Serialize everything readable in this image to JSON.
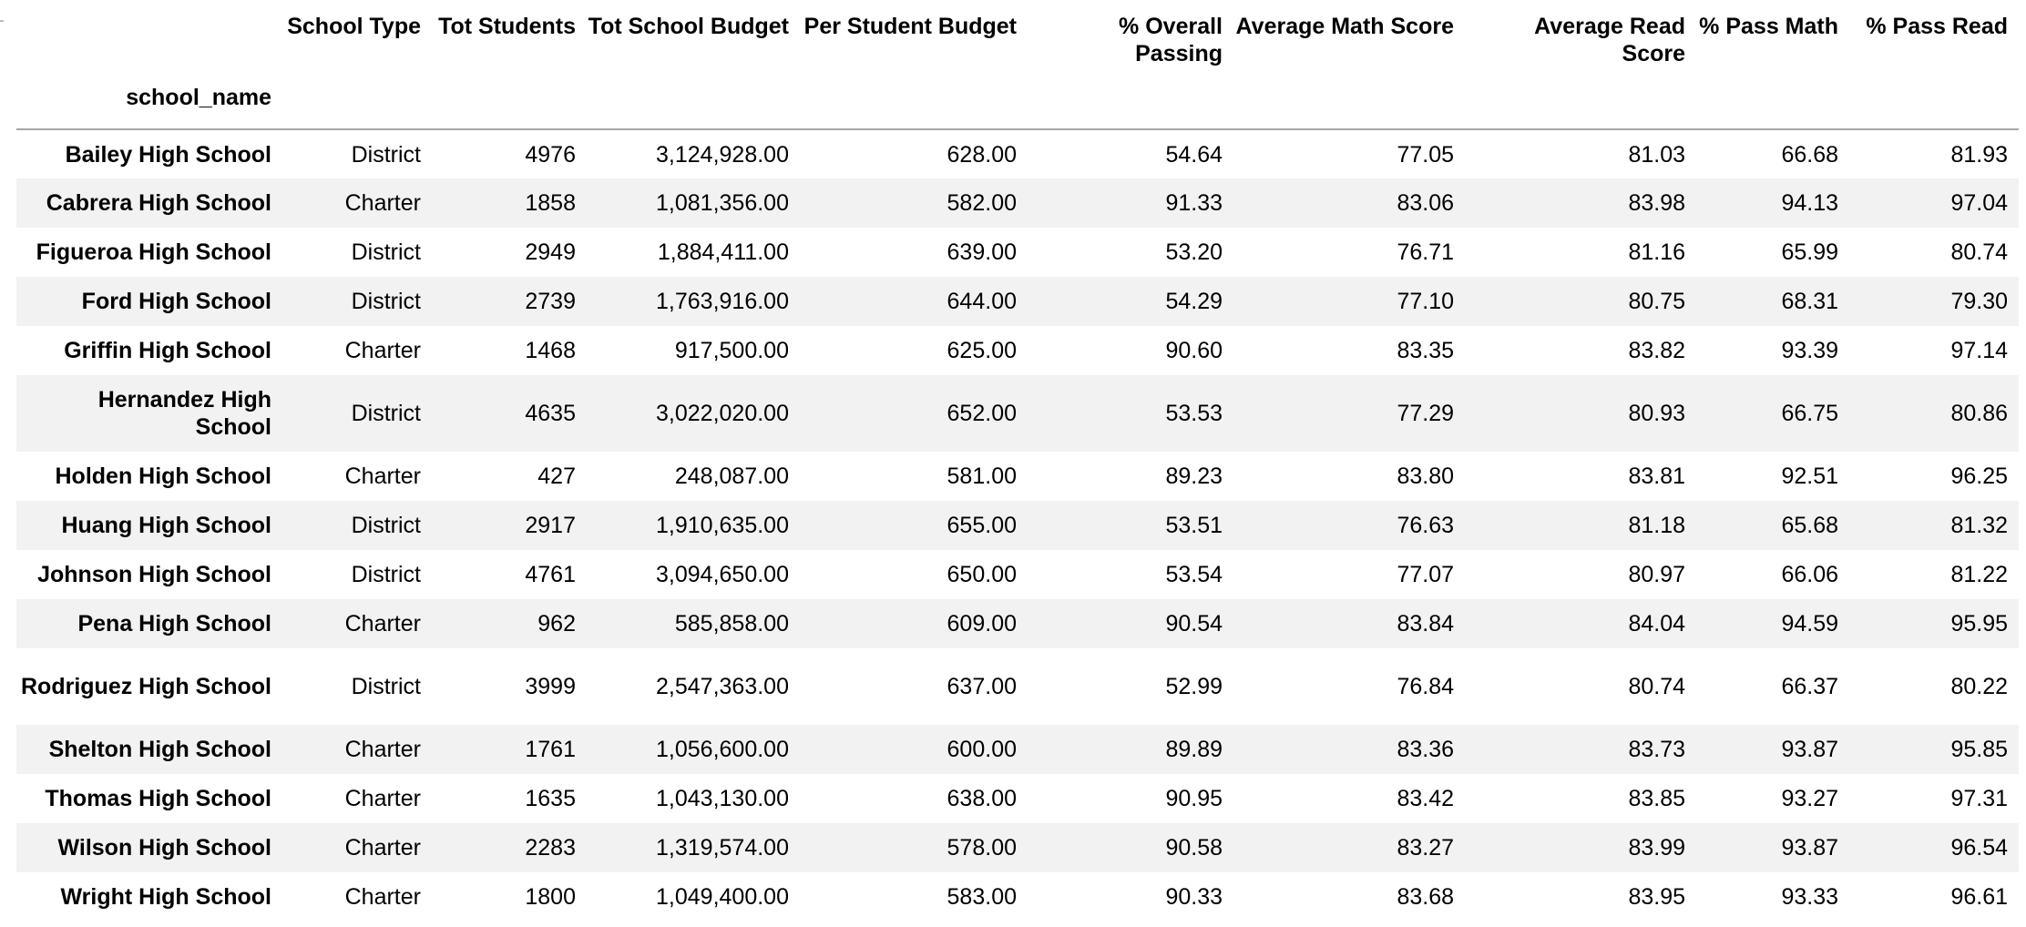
{
  "table": {
    "columns": [
      "School Type",
      "Tot Students",
      "Tot School Budget",
      "Per Student Budget",
      "% Overall Passing",
      "Average Math Score",
      "Average Read Score",
      "% Pass Math",
      "% Pass Read"
    ],
    "index_name": "school_name",
    "rows": [
      {
        "name": "Bailey High School",
        "type": "District",
        "students": "4976",
        "budget": "3,124,928.00",
        "per_student": "628.00",
        "overall_passing": "54.64",
        "avg_math": "77.05",
        "avg_read": "81.03",
        "pass_math": "66.68",
        "pass_read": "81.93"
      },
      {
        "name": "Cabrera High School",
        "type": "Charter",
        "students": "1858",
        "budget": "1,081,356.00",
        "per_student": "582.00",
        "overall_passing": "91.33",
        "avg_math": "83.06",
        "avg_read": "83.98",
        "pass_math": "94.13",
        "pass_read": "97.04"
      },
      {
        "name": "Figueroa High School",
        "type": "District",
        "students": "2949",
        "budget": "1,884,411.00",
        "per_student": "639.00",
        "overall_passing": "53.20",
        "avg_math": "76.71",
        "avg_read": "81.16",
        "pass_math": "65.99",
        "pass_read": "80.74"
      },
      {
        "name": "Ford High School",
        "type": "District",
        "students": "2739",
        "budget": "1,763,916.00",
        "per_student": "644.00",
        "overall_passing": "54.29",
        "avg_math": "77.10",
        "avg_read": "80.75",
        "pass_math": "68.31",
        "pass_read": "79.30"
      },
      {
        "name": "Griffin High School",
        "type": "Charter",
        "students": "1468",
        "budget": "917,500.00",
        "per_student": "625.00",
        "overall_passing": "90.60",
        "avg_math": "83.35",
        "avg_read": "83.82",
        "pass_math": "93.39",
        "pass_read": "97.14"
      },
      {
        "name": "Hernandez High School",
        "type": "District",
        "students": "4635",
        "budget": "3,022,020.00",
        "per_student": "652.00",
        "overall_passing": "53.53",
        "avg_math": "77.29",
        "avg_read": "80.93",
        "pass_math": "66.75",
        "pass_read": "80.86"
      },
      {
        "name": "Holden High School",
        "type": "Charter",
        "students": "427",
        "budget": "248,087.00",
        "per_student": "581.00",
        "overall_passing": "89.23",
        "avg_math": "83.80",
        "avg_read": "83.81",
        "pass_math": "92.51",
        "pass_read": "96.25"
      },
      {
        "name": "Huang High School",
        "type": "District",
        "students": "2917",
        "budget": "1,910,635.00",
        "per_student": "655.00",
        "overall_passing": "53.51",
        "avg_math": "76.63",
        "avg_read": "81.18",
        "pass_math": "65.68",
        "pass_read": "81.32"
      },
      {
        "name": "Johnson High School",
        "type": "District",
        "students": "4761",
        "budget": "3,094,650.00",
        "per_student": "650.00",
        "overall_passing": "53.54",
        "avg_math": "77.07",
        "avg_read": "80.97",
        "pass_math": "66.06",
        "pass_read": "81.22"
      },
      {
        "name": "Pena High School",
        "type": "Charter",
        "students": "962",
        "budget": "585,858.00",
        "per_student": "609.00",
        "overall_passing": "90.54",
        "avg_math": "83.84",
        "avg_read": "84.04",
        "pass_math": "94.59",
        "pass_read": "95.95"
      },
      {
        "name": "Rodriguez High School",
        "type": "District",
        "students": "3999",
        "budget": "2,547,363.00",
        "per_student": "637.00",
        "overall_passing": "52.99",
        "avg_math": "76.84",
        "avg_read": "80.74",
        "pass_math": "66.37",
        "pass_read": "80.22"
      },
      {
        "name": "Shelton High School",
        "type": "Charter",
        "students": "1761",
        "budget": "1,056,600.00",
        "per_student": "600.00",
        "overall_passing": "89.89",
        "avg_math": "83.36",
        "avg_read": "83.73",
        "pass_math": "93.87",
        "pass_read": "95.85"
      },
      {
        "name": "Thomas High School",
        "type": "Charter",
        "students": "1635",
        "budget": "1,043,130.00",
        "per_student": "638.00",
        "overall_passing": "90.95",
        "avg_math": "83.42",
        "avg_read": "83.85",
        "pass_math": "93.27",
        "pass_read": "97.31"
      },
      {
        "name": "Wilson High School",
        "type": "Charter",
        "students": "2283",
        "budget": "1,319,574.00",
        "per_student": "578.00",
        "overall_passing": "90.58",
        "avg_math": "83.27",
        "avg_read": "83.99",
        "pass_math": "93.87",
        "pass_read": "96.54"
      },
      {
        "name": "Wright High School",
        "type": "Charter",
        "students": "1800",
        "budget": "1,049,400.00",
        "per_student": "583.00",
        "overall_passing": "90.33",
        "avg_math": "83.68",
        "avg_read": "83.95",
        "pass_math": "93.33",
        "pass_read": "96.61"
      }
    ]
  }
}
